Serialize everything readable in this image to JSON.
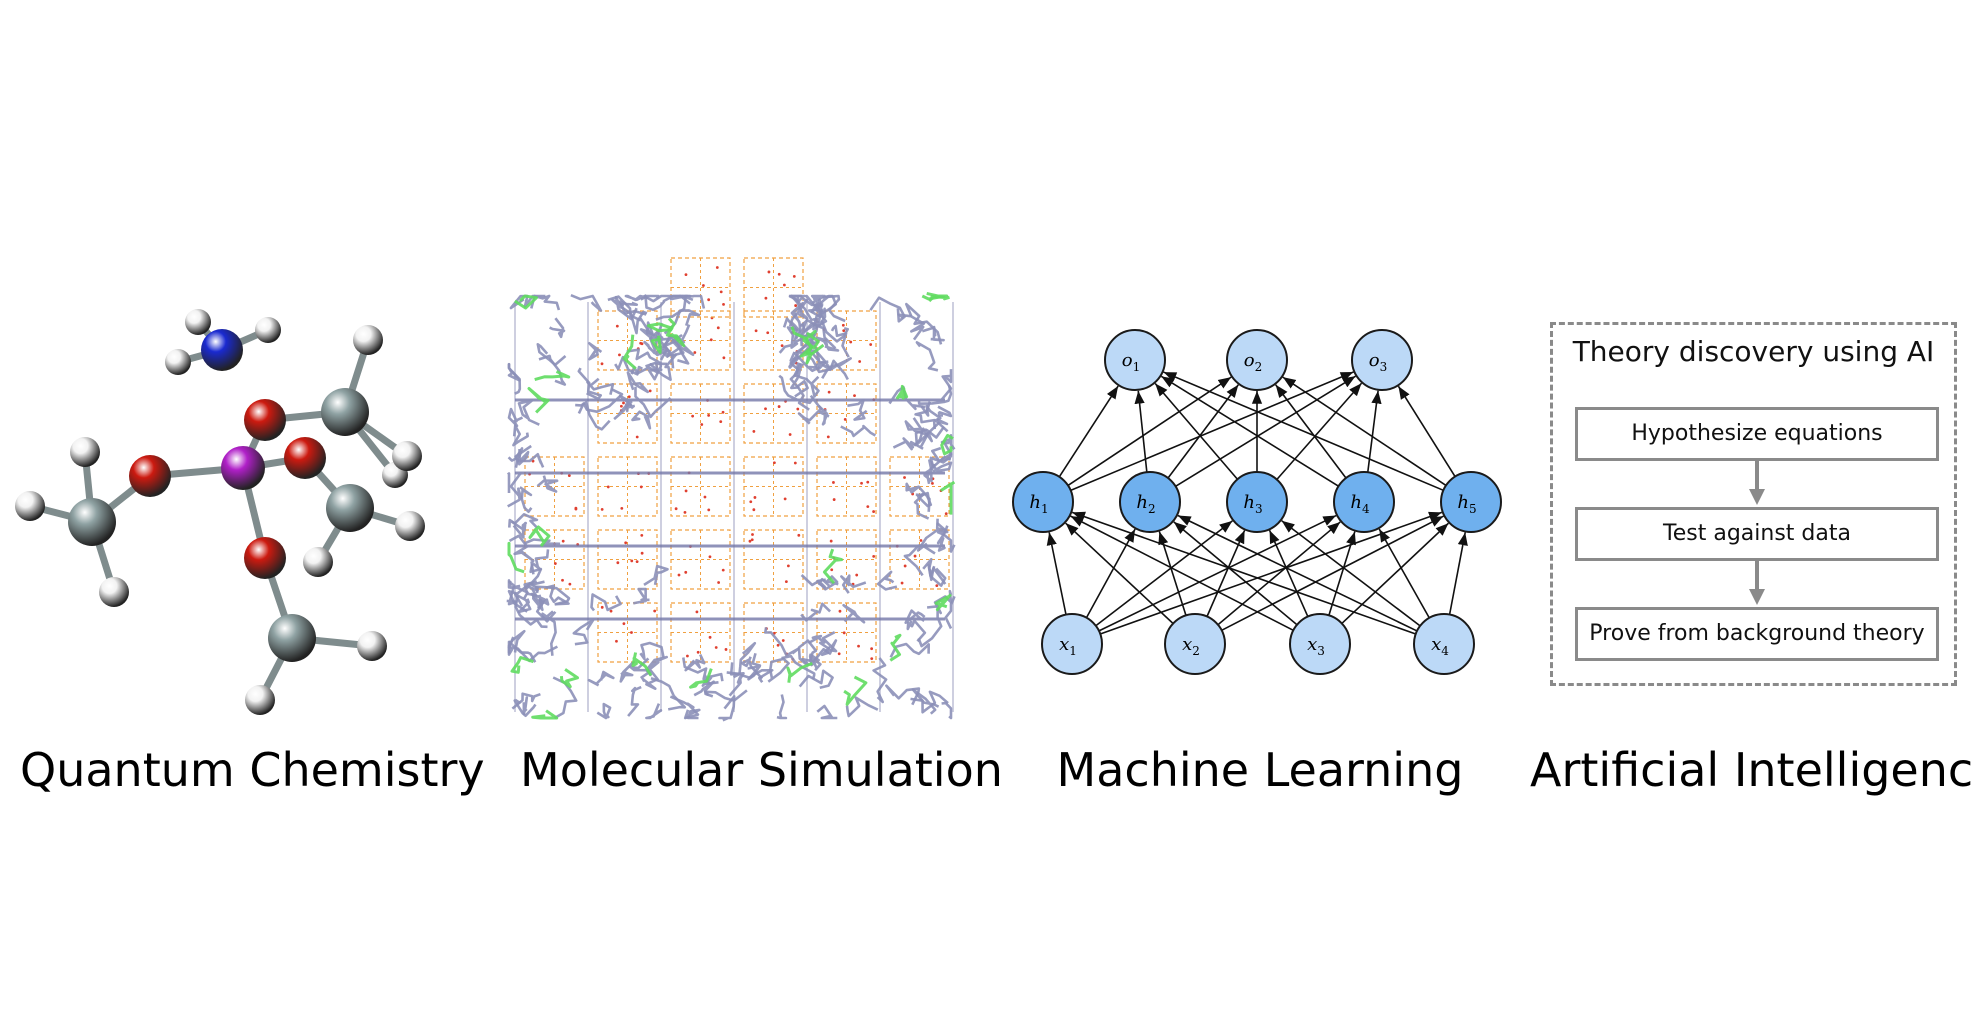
{
  "captions": {
    "quantum": "Quantum Chemistry",
    "molecular": "Molecular Simulation",
    "ml": "Machine Learning",
    "ai": "Artificial Intelligence"
  },
  "nn": {
    "outputs": [
      {
        "v": "o",
        "s": "1"
      },
      {
        "v": "o",
        "s": "2"
      },
      {
        "v": "o",
        "s": "3"
      }
    ],
    "hidden": [
      {
        "v": "h",
        "s": "1"
      },
      {
        "v": "h",
        "s": "2"
      },
      {
        "v": "h",
        "s": "3"
      },
      {
        "v": "h",
        "s": "4"
      },
      {
        "v": "h",
        "s": "5"
      }
    ],
    "inputs": [
      {
        "v": "x",
        "s": "1"
      },
      {
        "v": "x",
        "s": "2"
      },
      {
        "v": "x",
        "s": "3"
      },
      {
        "v": "x",
        "s": "4"
      }
    ],
    "colors": {
      "light": "#bcd9f7",
      "dark": "#6fb0ee",
      "stroke": "#1a1a1a"
    }
  },
  "ai": {
    "title": "Theory discovery using AI",
    "steps": [
      "Hypothesize equations",
      "Test against data",
      "Prove from background theory"
    ]
  },
  "colors": {
    "oxygen": "#cc1a10",
    "phosphorus": "#b020c8",
    "nitrogen": "#1a2ad0",
    "carbon": "#8fa2a3",
    "hydrogen": "#f2f2f2",
    "framework": "#f0a040",
    "chains": "#8c90b8",
    "highlight": "#5fdc5f"
  }
}
